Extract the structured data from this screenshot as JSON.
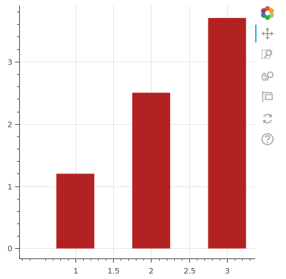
{
  "chart_data": {
    "type": "bar",
    "x": [
      1,
      2,
      3
    ],
    "values": [
      1.2,
      2.5,
      3.7
    ],
    "bar_width": 0.5,
    "bar_color": "#b22222",
    "xlim": [
      0.26,
      3.37
    ],
    "ylim": [
      -0.16,
      3.9
    ],
    "x_ticks": [
      1,
      1.5,
      2,
      2.5,
      3
    ],
    "x_tick_labels": [
      "1",
      "1.5",
      "2",
      "2.5",
      "3"
    ],
    "y_ticks": [
      0,
      1,
      2,
      3
    ],
    "y_tick_labels": [
      "0",
      "1",
      "2",
      "3"
    ],
    "grid": true,
    "title": "",
    "xlabel": "",
    "ylabel": ""
  },
  "toolbar": {
    "tools": [
      {
        "name": "bokeh-logo-icon",
        "interactable": true
      },
      {
        "name": "pan-tool-icon",
        "interactable": true,
        "active": true
      },
      {
        "name": "box-zoom-tool-icon",
        "interactable": true
      },
      {
        "name": "wheel-zoom-tool-icon",
        "interactable": true
      },
      {
        "name": "save-tool-icon",
        "interactable": true
      },
      {
        "name": "reset-tool-icon",
        "interactable": true
      },
      {
        "name": "help-tool-icon",
        "interactable": true
      }
    ]
  },
  "colors": {
    "axis": "#444444",
    "grid": "#e5e5e5",
    "toolbar_icon": "#a0a0a0",
    "toolbar_active": "#26aae1"
  }
}
